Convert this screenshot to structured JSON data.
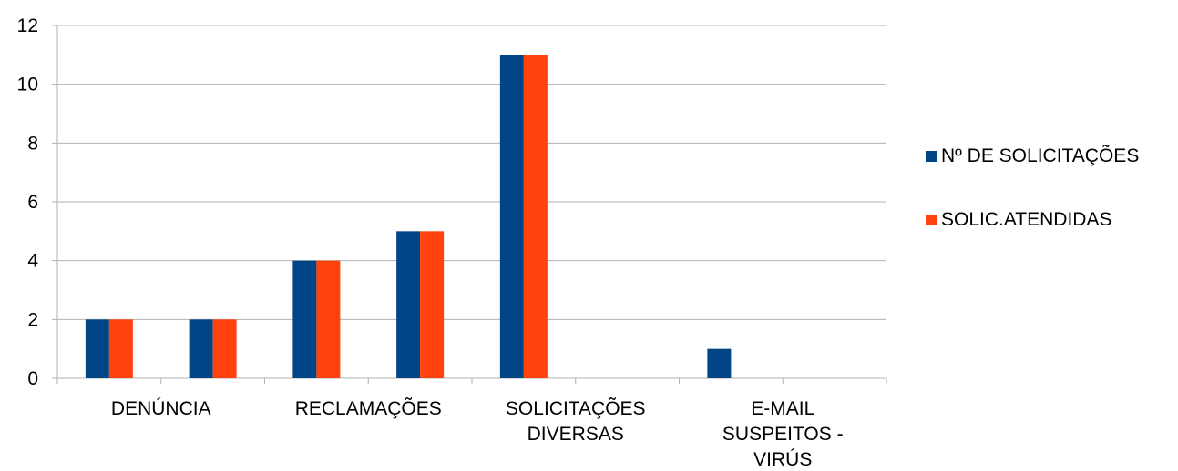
{
  "chart_data": {
    "type": "bar",
    "categories": [
      "DENÚNCIA",
      "",
      "RECLAMAÇÕES",
      "",
      "SOLICITAÇÕES DIVERSAS",
      "",
      "E-MAIL SUSPEITOS - VIRÚS",
      ""
    ],
    "category_label_lines": [
      [
        "DENÚNCIA"
      ],
      [],
      [
        "RECLAMAÇÕES"
      ],
      [],
      [
        "SOLICITAÇÕES",
        "DIVERSAS"
      ],
      [],
      [
        "E-MAIL",
        "SUSPEITOS -",
        "VIRÚS"
      ],
      []
    ],
    "series": [
      {
        "name": "Nº DE SOLICITAÇÕES",
        "color": "#004586",
        "values": [
          2,
          2,
          4,
          5,
          11,
          0,
          1,
          0
        ]
      },
      {
        "name": "SOLIC.ATENDIDAS",
        "color": "#ff420e",
        "values": [
          2,
          2,
          4,
          5,
          11,
          0,
          0,
          0
        ]
      }
    ],
    "y_ticks": [
      0,
      2,
      4,
      6,
      8,
      10,
      12
    ],
    "ylim": [
      0,
      12
    ],
    "grid": true,
    "legend_position": "right",
    "title": "",
    "xlabel": "",
    "ylabel": ""
  }
}
